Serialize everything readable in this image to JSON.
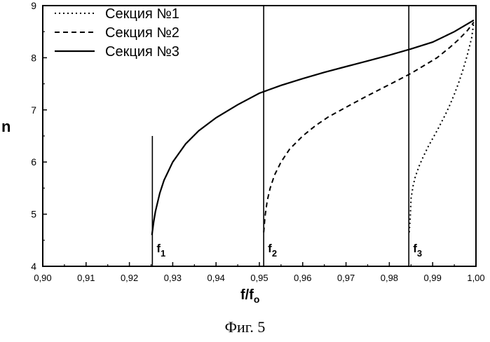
{
  "caption": "Фиг. 5",
  "chart_data": {
    "type": "line",
    "xlabel": "f/f",
    "xlabel_sub": "o",
    "ylabel": "n",
    "xlim": [
      0.9,
      1.0
    ],
    "ylim": [
      4,
      9
    ],
    "x_ticks": [
      "0,90",
      "0,91",
      "0,92",
      "0,93",
      "0,94",
      "0,95",
      "0,96",
      "0,97",
      "0,98",
      "0,99",
      "1,00"
    ],
    "y_ticks": [
      "4",
      "5",
      "6",
      "7",
      "8",
      "9"
    ],
    "legend_position": "top-left",
    "markers": [
      {
        "label": "f",
        "sub": "1",
        "x": 0.9253
      },
      {
        "label": "f",
        "sub": "2",
        "x": 0.951
      },
      {
        "label": "f",
        "sub": "3",
        "x": 0.9845
      }
    ],
    "series": [
      {
        "name": "Секция №1",
        "style": "dotted",
        "x": [
          0.9846,
          0.9848,
          0.985,
          0.9855,
          0.986,
          0.987,
          0.988,
          0.989,
          0.99,
          0.991,
          0.992,
          0.993,
          0.994,
          0.995,
          0.996,
          0.997,
          0.998,
          0.999,
          0.9995
        ],
        "y": [
          4.65,
          4.9,
          5.3,
          5.55,
          5.72,
          5.95,
          6.13,
          6.3,
          6.45,
          6.6,
          6.76,
          6.92,
          7.1,
          7.3,
          7.52,
          7.77,
          8.05,
          8.38,
          8.68
        ]
      },
      {
        "name": "Секция №2",
        "style": "dashed",
        "x": [
          0.951,
          0.9513,
          0.9518,
          0.9525,
          0.9535,
          0.955,
          0.957,
          0.96,
          0.963,
          0.966,
          0.97,
          0.974,
          0.978,
          0.982,
          0.985,
          0.988,
          0.991,
          0.994,
          0.996,
          0.998,
          0.9995
        ],
        "y": [
          4.65,
          4.95,
          5.25,
          5.5,
          5.75,
          6.0,
          6.25,
          6.5,
          6.7,
          6.87,
          7.05,
          7.23,
          7.4,
          7.57,
          7.7,
          7.85,
          8.0,
          8.2,
          8.35,
          8.52,
          8.68
        ]
      },
      {
        "name": "Секция №3",
        "style": "solid",
        "x": [
          0.9252,
          0.9256,
          0.926,
          0.927,
          0.928,
          0.93,
          0.933,
          0.936,
          0.94,
          0.945,
          0.95,
          0.955,
          0.96,
          0.965,
          0.97,
          0.975,
          0.98,
          0.985,
          0.99,
          0.995,
          0.9995
        ],
        "y": [
          4.6,
          4.85,
          5.05,
          5.4,
          5.65,
          6.0,
          6.35,
          6.6,
          6.85,
          7.1,
          7.32,
          7.47,
          7.6,
          7.72,
          7.83,
          7.94,
          8.05,
          8.17,
          8.3,
          8.5,
          8.72
        ]
      }
    ]
  }
}
